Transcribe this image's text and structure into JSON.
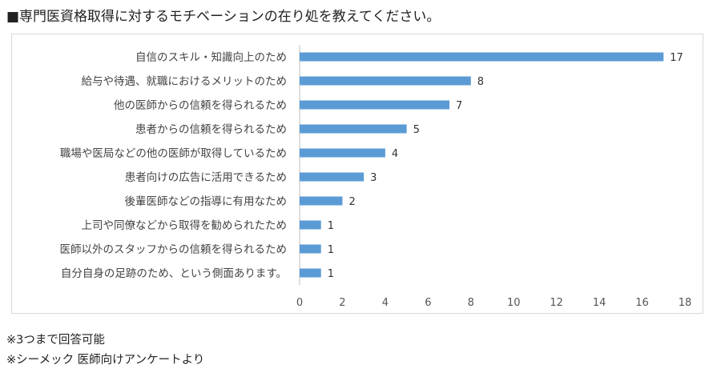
{
  "title": "■専門医資格取得に対するモチベーションの在り処を教えてください。",
  "notes": [
    "※3つまで回答可能",
    "※シーメック 医師向けアンケートより"
  ],
  "chart_data": {
    "type": "bar",
    "orientation": "horizontal",
    "categories": [
      "自信のスキル・知識向上のため",
      "給与や待遇、就職におけるメリットのため",
      "他の医師からの信頼を得られるため",
      "患者からの信頼を得られるため",
      "職場や医局などの他の医師が取得しているため",
      "患者向けの広告に活用できるため",
      "後輩医師などの指導に有用なため",
      "上司や同僚などから取得を勧められたため",
      "医師以外のスタッフからの信頼を得られるため",
      "自分自身の足跡のため、という側面あります。"
    ],
    "values": [
      17,
      8,
      7,
      5,
      4,
      3,
      2,
      1,
      1,
      1
    ],
    "xlim": [
      0,
      18
    ],
    "xticks": [
      0,
      2,
      4,
      6,
      8,
      10,
      12,
      14,
      16,
      18
    ],
    "bar_color": "#5b9bd5",
    "grid": false,
    "legend": false,
    "data_labels": true
  }
}
